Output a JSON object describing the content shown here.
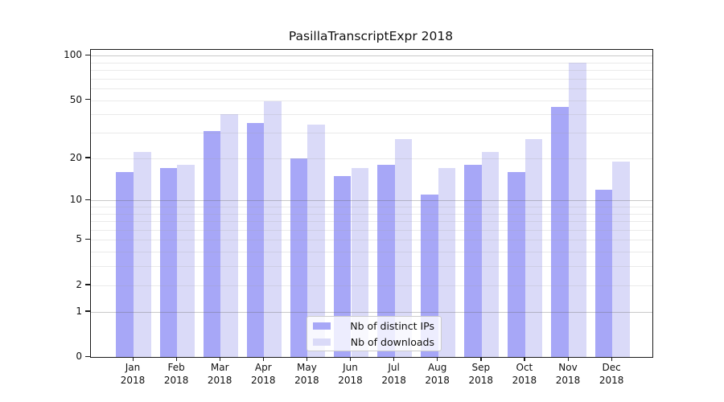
{
  "chart_data": {
    "type": "bar",
    "title": "PasillaTranscriptExpr 2018",
    "categories": [
      "Jan 2018",
      "Feb 2018",
      "Mar 2018",
      "Apr 2018",
      "May 2018",
      "Jun 2018",
      "Jul 2018",
      "Aug 2018",
      "Sep 2018",
      "Oct 2018",
      "Nov 2018",
      "Dec 2018"
    ],
    "series": [
      {
        "name": "Nb of distinct IPs",
        "color": "#a7a7f7",
        "values": [
          16,
          17,
          31,
          35,
          20,
          15,
          18,
          11,
          18,
          16,
          45,
          12
        ]
      },
      {
        "name": "Nb of downloads",
        "color": "#dadaf8",
        "values": [
          22,
          18,
          40,
          49,
          34,
          17,
          27,
          17,
          22,
          27,
          90,
          19
        ]
      }
    ],
    "yscale": "log10(1+y)",
    "ylim": [
      0,
      109
    ],
    "ytick_values": [
      100,
      50,
      20,
      10,
      5,
      2,
      1,
      0
    ],
    "ytick_labels": [
      "100",
      "50",
      "20",
      "10",
      "5",
      "2",
      "1",
      "0"
    ],
    "minor_grid_values": [
      2,
      3,
      4,
      5,
      6,
      7,
      8,
      9,
      20,
      30,
      40,
      50,
      60,
      70,
      80,
      90
    ],
    "major_grid_values": [
      1,
      10,
      100
    ],
    "grid": "on",
    "legend_position": "bottom-center",
    "xlabel": "",
    "ylabel": "",
    "colors": {
      "spine": "#1a1a1a",
      "text": "#111111",
      "background": "#ffffff"
    }
  }
}
